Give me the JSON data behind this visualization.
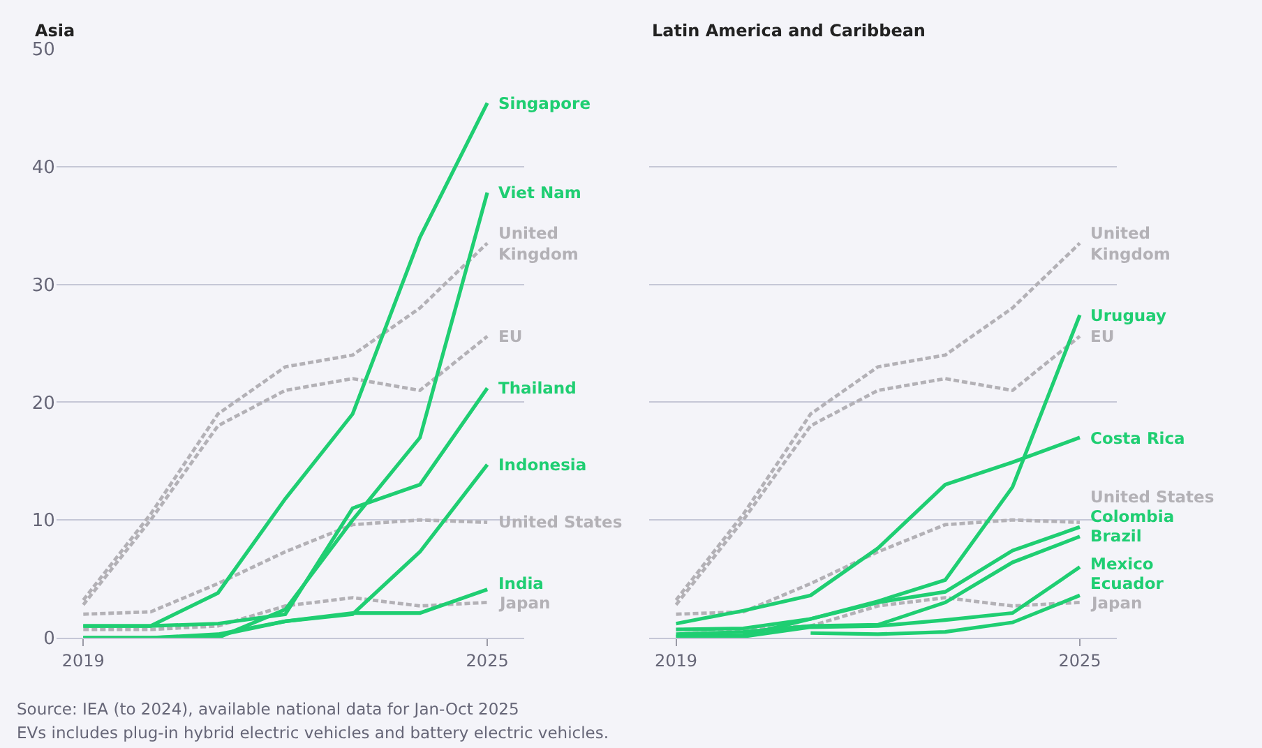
{
  "chart_data": [
    {
      "type": "line",
      "title": "Asia",
      "x": [
        2019,
        2020,
        2021,
        2022,
        2023,
        2024,
        2025
      ],
      "xlim": [
        2018.6,
        2025.55
      ],
      "xticks": [
        2019,
        2025
      ],
      "ylim": [
        0,
        50
      ],
      "yticks": [
        0,
        10,
        20,
        30,
        40,
        50
      ],
      "grid": "y",
      "marker": "none",
      "series": [
        {
          "name": "United\nKingdom",
          "color": "#b3b1b6",
          "line_style": "dashed",
          "values": [
            3.2,
            10.5,
            19,
            23,
            24,
            28,
            33.5
          ]
        },
        {
          "name": "EU",
          "color": "#b3b1b6",
          "line_style": "dashed",
          "values": [
            2.8,
            10,
            18,
            21,
            22,
            21,
            25.6
          ]
        },
        {
          "name": "United States",
          "color": "#b3b1b6",
          "line_style": "dashed",
          "values": [
            2,
            2.2,
            4.6,
            7.3,
            9.6,
            10,
            9.8
          ]
        },
        {
          "name": "Japan",
          "color": "#b3b1b6",
          "line_style": "dashed",
          "values": [
            0.7,
            0.7,
            1,
            2.7,
            3.4,
            2.7,
            3.0
          ]
        },
        {
          "name": "Singapore",
          "color": "#1fce72",
          "line_style": "solid",
          "values": [
            1,
            1,
            3.8,
            11.8,
            19,
            34,
            45.4
          ]
        },
        {
          "name": "Viet Nam",
          "color": "#1fce72",
          "line_style": "solid",
          "values": [
            0,
            0,
            0,
            2.4,
            10,
            17,
            37.8
          ]
        },
        {
          "name": "Thailand",
          "color": "#1fce72",
          "line_style": "solid",
          "values": [
            1,
            1,
            1.2,
            2.0,
            11,
            13,
            21.2
          ]
        },
        {
          "name": "Indonesia",
          "color": "#1fce72",
          "line_style": "solid",
          "values": [
            0,
            0,
            0.3,
            1.4,
            2,
            7.3,
            14.7
          ]
        },
        {
          "name": "India",
          "color": "#1fce72",
          "line_style": "solid",
          "values": [
            0,
            0,
            0.2,
            1.4,
            2.1,
            2.1,
            4.1
          ]
        }
      ],
      "annotations": [
        "Source: IEA (to 2024), available national data for Jan-Oct 2025",
        "EVs includes plug-in hybrid electric vehicles and battery electric vehicles."
      ]
    },
    {
      "type": "line",
      "title": "Latin America and Caribbean",
      "x": [
        2019,
        2020,
        2021,
        2022,
        2023,
        2024,
        2025
      ],
      "xlim": [
        2018.6,
        2025.55
      ],
      "xticks": [
        2019,
        2025
      ],
      "ylim": [
        0,
        50
      ],
      "yticks": [
        0,
        10,
        20,
        30,
        40,
        50
      ],
      "grid": "y",
      "marker": "none",
      "tick_labels": "x",
      "series": [
        {
          "name": "United\nKingdom",
          "color": "#b3b1b6",
          "line_style": "dashed",
          "values": [
            3.2,
            10.5,
            19,
            23,
            24,
            28,
            33.5
          ]
        },
        {
          "name": "EU",
          "color": "#b3b1b6",
          "line_style": "dashed",
          "values": [
            2.8,
            10,
            18,
            21,
            22,
            21,
            25.6
          ]
        },
        {
          "name": "United States",
          "color": "#b3b1b6",
          "line_style": "dashed",
          "values": [
            2,
            2.2,
            4.6,
            7.3,
            9.6,
            10,
            9.8
          ]
        },
        {
          "name": "Japan",
          "color": "#b3b1b6",
          "line_style": "dashed",
          "values": [
            0.7,
            0.7,
            1,
            2.7,
            3.4,
            2.7,
            3.0
          ]
        },
        {
          "name": "Uruguay",
          "color": "#1fce72",
          "line_style": "solid",
          "values": [
            0.1,
            0.2,
            1.6,
            3.1,
            4.9,
            12.8,
            27.4
          ]
        },
        {
          "name": "Costa Rica",
          "color": "#1fce72",
          "line_style": "solid",
          "values": [
            1.2,
            2.3,
            3.6,
            7.6,
            13,
            14.9,
            17.0
          ]
        },
        {
          "name": "Colombia",
          "color": "#1fce72",
          "line_style": "solid",
          "values": [
            0.7,
            0.8,
            1.6,
            3.0,
            3.9,
            7.4,
            9.4
          ]
        },
        {
          "name": "Brazil",
          "color": "#1fce72",
          "line_style": "solid",
          "values": [
            0.3,
            0.5,
            1.0,
            1.1,
            3.0,
            6.4,
            8.6
          ]
        },
        {
          "name": "Mexico",
          "color": "#1fce72",
          "line_style": "solid",
          "values": [
            0.1,
            0.1,
            0.9,
            1.0,
            1.5,
            2.1,
            6.0
          ]
        },
        {
          "name": "Ecuador",
          "color": "#1fce72",
          "line_style": "solid",
          "values": [
            null,
            null,
            0.4,
            0.3,
            0.5,
            1.3,
            3.6
          ]
        }
      ]
    }
  ]
}
